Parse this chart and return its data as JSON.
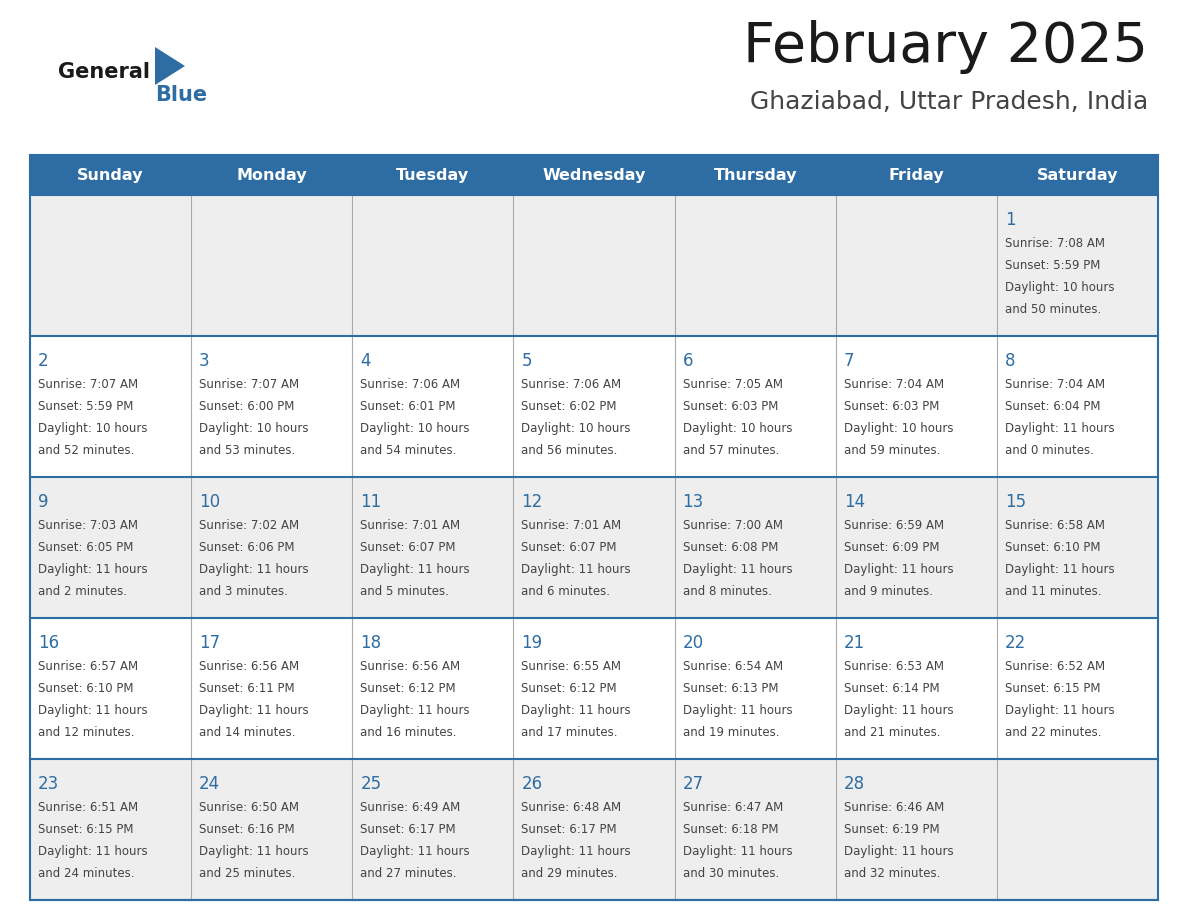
{
  "title": "February 2025",
  "subtitle": "Ghaziabad, Uttar Pradesh, India",
  "header_color": "#2E6DA4",
  "header_text_color": "#FFFFFF",
  "border_color": "#2E6DA4",
  "grid_color": "#AAAAAA",
  "row_sep_color": "#2E6DA4",
  "day_headers": [
    "Sunday",
    "Monday",
    "Tuesday",
    "Wednesday",
    "Thursday",
    "Friday",
    "Saturday"
  ],
  "title_color": "#1a1a1a",
  "subtitle_color": "#444444",
  "day_num_color": "#2E6DA4",
  "cell_text_color": "#444444",
  "logo_general_color": "#1a1a1a",
  "logo_blue_color": "#2E6DA4",
  "odd_row_bg": "#EEEEEE",
  "even_row_bg": "#FFFFFF",
  "calendar_data": [
    [
      null,
      null,
      null,
      null,
      null,
      null,
      {
        "day": 1,
        "sunrise": "7:08 AM",
        "sunset": "5:59 PM",
        "daylight": "10 hours",
        "daylight2": "and 50 minutes."
      }
    ],
    [
      {
        "day": 2,
        "sunrise": "7:07 AM",
        "sunset": "5:59 PM",
        "daylight": "10 hours",
        "daylight2": "and 52 minutes."
      },
      {
        "day": 3,
        "sunrise": "7:07 AM",
        "sunset": "6:00 PM",
        "daylight": "10 hours",
        "daylight2": "and 53 minutes."
      },
      {
        "day": 4,
        "sunrise": "7:06 AM",
        "sunset": "6:01 PM",
        "daylight": "10 hours",
        "daylight2": "and 54 minutes."
      },
      {
        "day": 5,
        "sunrise": "7:06 AM",
        "sunset": "6:02 PM",
        "daylight": "10 hours",
        "daylight2": "and 56 minutes."
      },
      {
        "day": 6,
        "sunrise": "7:05 AM",
        "sunset": "6:03 PM",
        "daylight": "10 hours",
        "daylight2": "and 57 minutes."
      },
      {
        "day": 7,
        "sunrise": "7:04 AM",
        "sunset": "6:03 PM",
        "daylight": "10 hours",
        "daylight2": "and 59 minutes."
      },
      {
        "day": 8,
        "sunrise": "7:04 AM",
        "sunset": "6:04 PM",
        "daylight": "11 hours",
        "daylight2": "and 0 minutes."
      }
    ],
    [
      {
        "day": 9,
        "sunrise": "7:03 AM",
        "sunset": "6:05 PM",
        "daylight": "11 hours",
        "daylight2": "and 2 minutes."
      },
      {
        "day": 10,
        "sunrise": "7:02 AM",
        "sunset": "6:06 PM",
        "daylight": "11 hours",
        "daylight2": "and 3 minutes."
      },
      {
        "day": 11,
        "sunrise": "7:01 AM",
        "sunset": "6:07 PM",
        "daylight": "11 hours",
        "daylight2": "and 5 minutes."
      },
      {
        "day": 12,
        "sunrise": "7:01 AM",
        "sunset": "6:07 PM",
        "daylight": "11 hours",
        "daylight2": "and 6 minutes."
      },
      {
        "day": 13,
        "sunrise": "7:00 AM",
        "sunset": "6:08 PM",
        "daylight": "11 hours",
        "daylight2": "and 8 minutes."
      },
      {
        "day": 14,
        "sunrise": "6:59 AM",
        "sunset": "6:09 PM",
        "daylight": "11 hours",
        "daylight2": "and 9 minutes."
      },
      {
        "day": 15,
        "sunrise": "6:58 AM",
        "sunset": "6:10 PM",
        "daylight": "11 hours",
        "daylight2": "and 11 minutes."
      }
    ],
    [
      {
        "day": 16,
        "sunrise": "6:57 AM",
        "sunset": "6:10 PM",
        "daylight": "11 hours",
        "daylight2": "and 12 minutes."
      },
      {
        "day": 17,
        "sunrise": "6:56 AM",
        "sunset": "6:11 PM",
        "daylight": "11 hours",
        "daylight2": "and 14 minutes."
      },
      {
        "day": 18,
        "sunrise": "6:56 AM",
        "sunset": "6:12 PM",
        "daylight": "11 hours",
        "daylight2": "and 16 minutes."
      },
      {
        "day": 19,
        "sunrise": "6:55 AM",
        "sunset": "6:12 PM",
        "daylight": "11 hours",
        "daylight2": "and 17 minutes."
      },
      {
        "day": 20,
        "sunrise": "6:54 AM",
        "sunset": "6:13 PM",
        "daylight": "11 hours",
        "daylight2": "and 19 minutes."
      },
      {
        "day": 21,
        "sunrise": "6:53 AM",
        "sunset": "6:14 PM",
        "daylight": "11 hours",
        "daylight2": "and 21 minutes."
      },
      {
        "day": 22,
        "sunrise": "6:52 AM",
        "sunset": "6:15 PM",
        "daylight": "11 hours",
        "daylight2": "and 22 minutes."
      }
    ],
    [
      {
        "day": 23,
        "sunrise": "6:51 AM",
        "sunset": "6:15 PM",
        "daylight": "11 hours",
        "daylight2": "and 24 minutes."
      },
      {
        "day": 24,
        "sunrise": "6:50 AM",
        "sunset": "6:16 PM",
        "daylight": "11 hours",
        "daylight2": "and 25 minutes."
      },
      {
        "day": 25,
        "sunrise": "6:49 AM",
        "sunset": "6:17 PM",
        "daylight": "11 hours",
        "daylight2": "and 27 minutes."
      },
      {
        "day": 26,
        "sunrise": "6:48 AM",
        "sunset": "6:17 PM",
        "daylight": "11 hours",
        "daylight2": "and 29 minutes."
      },
      {
        "day": 27,
        "sunrise": "6:47 AM",
        "sunset": "6:18 PM",
        "daylight": "11 hours",
        "daylight2": "and 30 minutes."
      },
      {
        "day": 28,
        "sunrise": "6:46 AM",
        "sunset": "6:19 PM",
        "daylight": "11 hours",
        "daylight2": "and 32 minutes."
      },
      null
    ]
  ]
}
